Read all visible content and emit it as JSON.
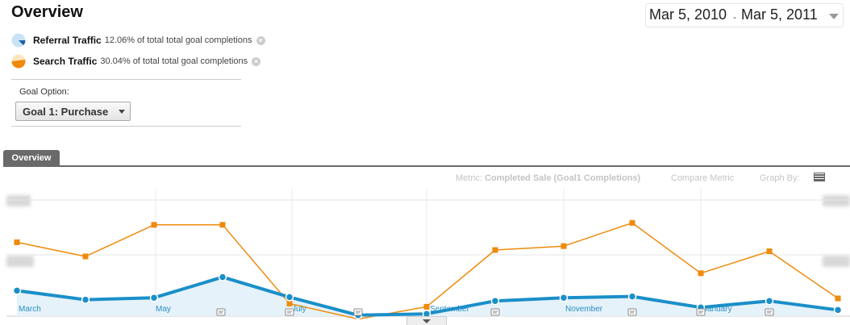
{
  "header": {
    "title": "Overview"
  },
  "date_range": {
    "start": "Mar 5, 2010",
    "separator": "-",
    "end": "Mar 5, 2011"
  },
  "segments": [
    {
      "name": "Referral Traffic",
      "percent": "12.06%",
      "desc": "of total total goal completions",
      "color": "#1a8fc9"
    },
    {
      "name": "Search Traffic",
      "percent": "30.04%",
      "desc": "of total total goal completions",
      "color": "#ef8a0c"
    }
  ],
  "goal": {
    "label": "Goal Option:",
    "selected": "Goal 1: Purchase"
  },
  "tabs": [
    {
      "label": "Overview"
    }
  ],
  "graph_controls": {
    "metric_label": "Metric:",
    "metric_value": "Completed Sale (Goal1 Completions)",
    "compare_label": "Compare Metric",
    "graph_by_label": "Graph By:"
  },
  "chart_data": {
    "type": "line",
    "x_tick_labels": [
      "March",
      "May",
      "July",
      "September",
      "November",
      "January"
    ],
    "y_axis": "unreadable (blurred)",
    "grid": true,
    "series": [
      {
        "name": "Search Traffic",
        "color": "#ef8a0c",
        "marker": "square",
        "values": [
          112,
          90,
          139,
          139,
          17,
          -7,
          12,
          100,
          106,
          142,
          64,
          98,
          25
        ]
      },
      {
        "name": "Referral Traffic",
        "color": "#1a8fc9",
        "marker": "circle",
        "area": true,
        "values": [
          37,
          23,
          26,
          58,
          27,
          -1,
          1,
          21,
          26,
          28,
          11,
          21,
          7
        ]
      }
    ]
  }
}
